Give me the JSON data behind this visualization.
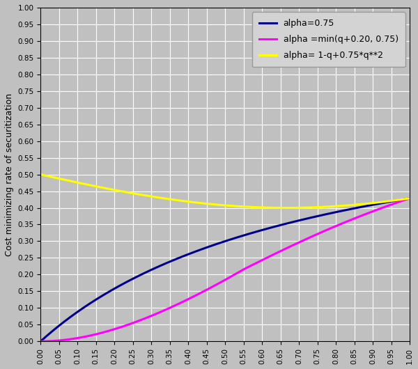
{
  "ylabel": "Cost minimizing rate of securitization",
  "xlim": [
    0.0,
    1.0
  ],
  "ylim": [
    0.0,
    1.0
  ],
  "yticks": [
    0.0,
    0.05,
    0.1,
    0.15,
    0.2,
    0.25,
    0.3,
    0.35,
    0.4,
    0.45,
    0.5,
    0.55,
    0.6,
    0.65,
    0.7,
    0.75,
    0.8,
    0.85,
    0.9,
    0.95,
    1.0
  ],
  "xticks": [
    0.0,
    0.05,
    0.1,
    0.15,
    0.2,
    0.25,
    0.3,
    0.35,
    0.4,
    0.45,
    0.5,
    0.55,
    0.6,
    0.65,
    0.7,
    0.75,
    0.8,
    0.85,
    0.9,
    0.95,
    1.0
  ],
  "line1_color": "#00008B",
  "line2_color": "#FF00FF",
  "line3_color": "#FFFF00",
  "line1_label": "alpha=0.75",
  "line2_label": "alpha =min(q+0.20, 0.75)",
  "line3_label": "alpha= 1-q+0.75*q**2",
  "line_width": 2.2,
  "background_color": "#C0C0C0",
  "grid_color": "#FFFFFF",
  "legend_facecolor": "#D3D3D3",
  "legend_edgecolor": "#999999"
}
